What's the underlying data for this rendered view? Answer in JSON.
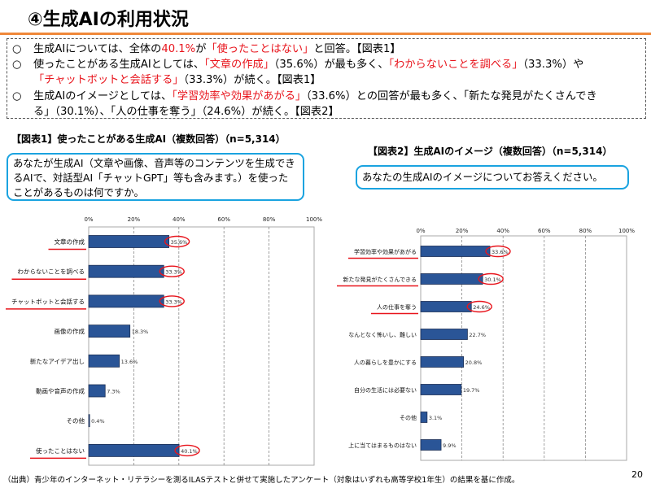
{
  "title": "④生成AIの利用状況",
  "summary": [
    [
      {
        "t": "生成AIについては、全体の"
      },
      {
        "t": "40.1%",
        "red": true
      },
      {
        "t": "が"
      },
      {
        "t": "「使ったことはない」",
        "red": true
      },
      {
        "t": "と回答。【図表1】"
      }
    ],
    [
      {
        "t": "使ったことがある生成AIとしては、"
      },
      {
        "t": "「文章の作成」",
        "red": true
      },
      {
        "t": "（35.6%）が最も多く、"
      },
      {
        "t": "「わからないことを調べる」",
        "red": true
      },
      {
        "t": "（33.3%）や"
      }
    ],
    [
      {
        "t": "「チャットボットと会話する」",
        "red": true
      },
      {
        "t": "（33.3%）が続く。【図表1】"
      }
    ],
    [
      {
        "t": "生成AIのイメージとしては、"
      },
      {
        "t": "「学習効率や効果があがる」",
        "red": true
      },
      {
        "t": "（33.6%）との回答が最も多く、「新たな発見がたくさんでき"
      }
    ],
    [
      {
        "t": "る」（30.1%）、「人の仕事を奪う」（24.6%）が続く。【図表2】"
      }
    ]
  ],
  "bullet_marker": "○",
  "figure1": {
    "title": "【図表1】使ったことがある生成AI（複数回答）（n=5,314）",
    "question": "あなたが生成AI（文章や画像、音声等のコンテンツを生成できるAIで、対話型AI「チャットGPT」等も含みます。）を使ったことがあるものは何ですか。"
  },
  "figure2": {
    "title": "【図表2】生成AIのイメージ（複数回答）（n=5,314）",
    "question": "あなたの生成AIのイメージについてお答えください。"
  },
  "chart_data": [
    {
      "type": "bar",
      "orientation": "horizontal",
      "categories": [
        "文章の作成",
        "わからないことを調べる",
        "チャットボットと会話する",
        "画像の作成",
        "新たなアイデア出し",
        "動画や音声の作成",
        "その他",
        "使ったことはない"
      ],
      "values": [
        35.6,
        33.3,
        33.3,
        18.3,
        13.6,
        7.3,
        0.4,
        40.1
      ],
      "value_labels": [
        "35.6%",
        "33.3%",
        "33.3%",
        "18.3%",
        "13.6%",
        "7.3%",
        "0.4%",
        "40.1%"
      ],
      "highlighted": [
        true,
        true,
        true,
        false,
        false,
        false,
        false,
        true
      ],
      "xlim": [
        0,
        100
      ],
      "xticks": [
        "0%",
        "20%",
        "40%",
        "60%",
        "80%",
        "100%"
      ],
      "grid": true,
      "bar_color": "#2a5597",
      "highlight_color": "#e8141c"
    },
    {
      "type": "bar",
      "orientation": "horizontal",
      "categories": [
        "学習効率や効果があがる",
        "新たな発見がたくさんできる",
        "人の仕事を奪う",
        "なんとなく怖いし、難しい",
        "人の暮らしを豊かにする",
        "自分の生活には必要ない",
        "その他",
        "上に当てはまるものはない"
      ],
      "values": [
        33.6,
        30.1,
        24.6,
        22.7,
        20.8,
        19.7,
        3.1,
        9.9
      ],
      "value_labels": [
        "33.6%",
        "30.1%",
        "24.6%",
        "22.7%",
        "20.8%",
        "19.7%",
        "3.1%",
        "9.9%"
      ],
      "highlighted": [
        true,
        true,
        true,
        false,
        false,
        false,
        false,
        false
      ],
      "xlim": [
        0,
        100
      ],
      "xticks": [
        "0%",
        "20%",
        "40%",
        "60%",
        "80%",
        "100%"
      ],
      "grid": true,
      "bar_color": "#2a5597",
      "highlight_color": "#e8141c"
    }
  ],
  "footer": "（出典）青少年のインターネット・リテラシーを測るILASテストと併せて実施したアンケート（対象はいずれも高等学校1年生）の結果を基に作成。",
  "page_number": "20"
}
